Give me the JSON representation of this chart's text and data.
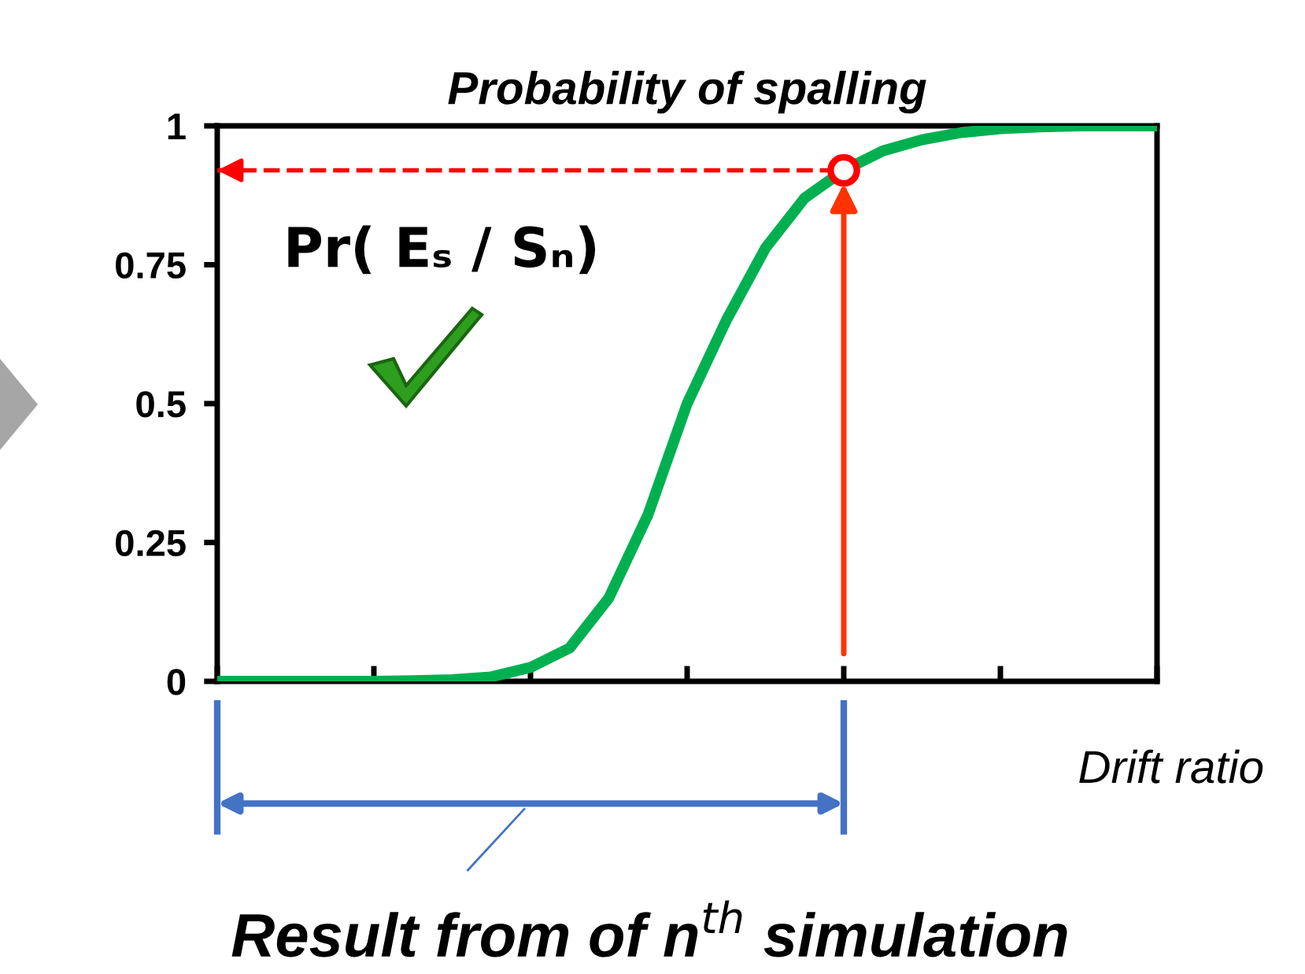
{
  "chart_data": {
    "type": "line",
    "title": "Probability of spalling",
    "xlabel": "Drift ratio",
    "categories": [
      null,
      null,
      null,
      null,
      null,
      null,
      null,
      null,
      null,
      null,
      null,
      null,
      null,
      null,
      null,
      null,
      null,
      null,
      null,
      null,
      null,
      null,
      null,
      null,
      null
    ],
    "ylim": [
      0,
      1
    ],
    "yticks": [
      {
        "value": 0,
        "label": "0"
      },
      {
        "value": 0.25,
        "label": "0.25"
      },
      {
        "value": 0.5,
        "label": "0.5"
      },
      {
        "value": 0.75,
        "label": "0.75"
      },
      {
        "value": 1,
        "label": "1"
      }
    ],
    "series": [
      {
        "color": "#00b050",
        "values": [
          0,
          0,
          0,
          0,
          0,
          0.001,
          0.003,
          0.008,
          0.025,
          0.06,
          0.15,
          0.3,
          0.5,
          0.65,
          0.78,
          0.87,
          0.92,
          0.955,
          0.975,
          0.988,
          0.995,
          0.998,
          1,
          1,
          1
        ]
      }
    ],
    "ref_lines": [
      {
        "axis": "y",
        "value": 0.92,
        "label": null,
        "color": "#ff0000",
        "line_style": "dashed"
      }
    ],
    "annotations": [
      "Pr( Eₛ / Sₙ)",
      "Result from of n$^{th}$ simulation"
    ],
    "grid": false
  }
}
